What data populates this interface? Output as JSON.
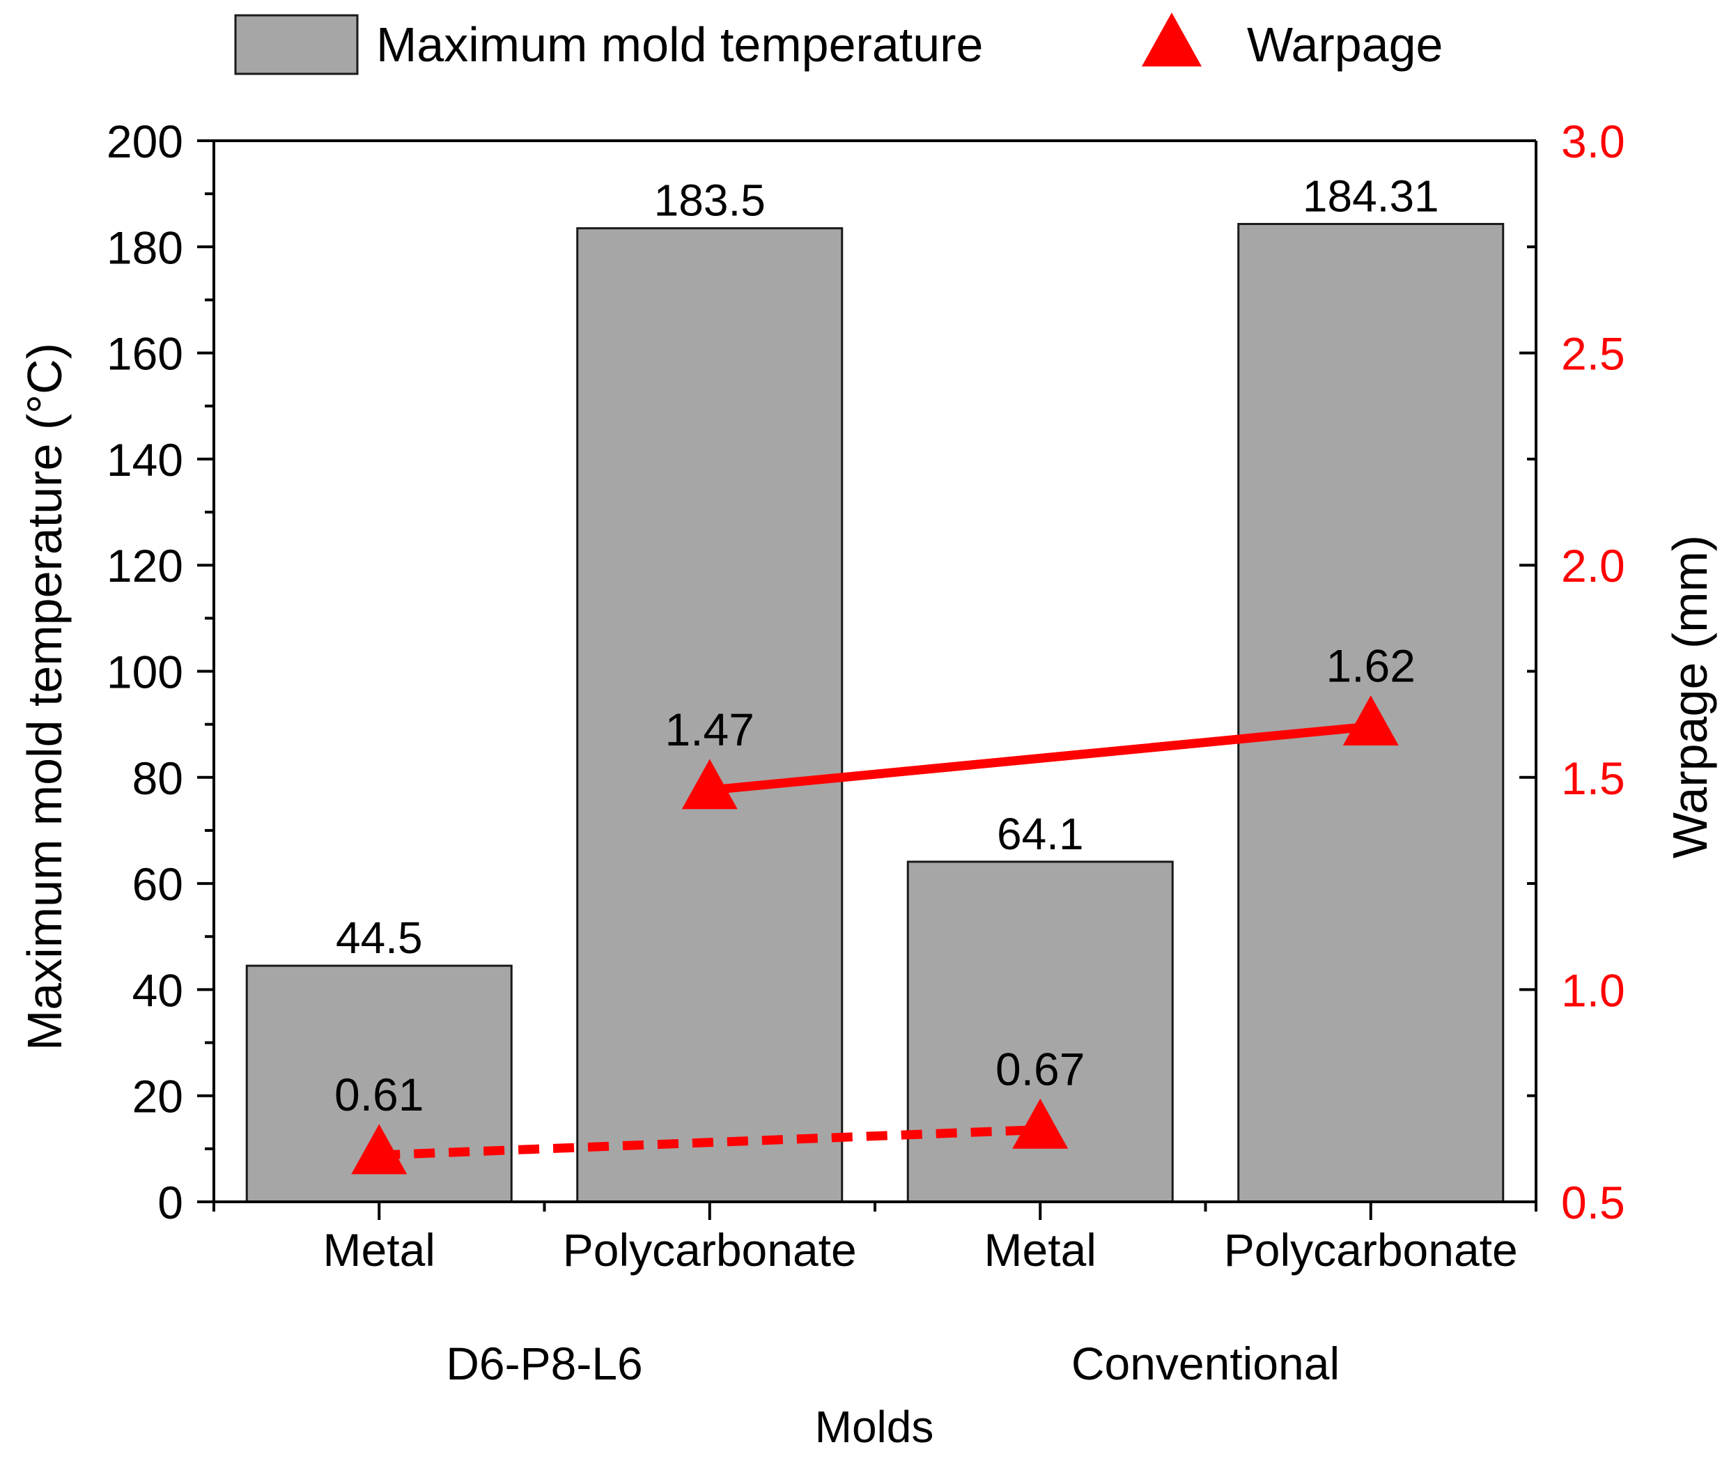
{
  "chart_data": {
    "type": "bar",
    "title": "",
    "categories": [
      "Metal",
      "Polycarbonate",
      "Metal",
      "Polycarbonate"
    ],
    "groups": [
      {
        "label": "D6-P8-L6",
        "members": [
          0,
          1
        ]
      },
      {
        "label": "Conventional",
        "members": [
          2,
          3
        ]
      }
    ],
    "xlabel": "Molds",
    "ylabel": "Maximum mold temperature (°C)",
    "y2label": "Warpage (mm)",
    "ylim": [
      0,
      200
    ],
    "yticks": [
      0,
      20,
      40,
      60,
      80,
      100,
      120,
      140,
      160,
      180,
      200
    ],
    "ytick_labels": [
      "0",
      "20",
      "40",
      "60",
      "80",
      "100",
      "120",
      "140",
      "160",
      "180",
      "200"
    ],
    "y2lim": [
      0.5,
      3.0
    ],
    "y2ticks": [
      0.5,
      1.0,
      1.5,
      2.0,
      2.5,
      3.0
    ],
    "y2tick_labels": [
      "0.5",
      "1.0",
      "1.5",
      "2.0",
      "2.5",
      "3.0"
    ],
    "series": [
      {
        "name": "Maximum mold temperature",
        "type": "bar",
        "axis": "left",
        "values": [
          44.5,
          183.5,
          64.1,
          184.31
        ],
        "labels": [
          "44.5",
          "183.5",
          "64.1",
          "184.31"
        ]
      },
      {
        "name": "Warpage",
        "type": "line",
        "marker": "triangle",
        "axis": "right",
        "values": [
          0.61,
          1.47,
          0.67,
          1.62
        ],
        "labels": [
          "0.61",
          "1.47",
          "0.67",
          "1.62"
        ],
        "connections": [
          {
            "from": 0,
            "to": 2,
            "style": "dashed"
          },
          {
            "from": 1,
            "to": 3,
            "style": "solid"
          }
        ]
      }
    ],
    "legend": {
      "position": "top",
      "entries": [
        {
          "label": "Maximum mold temperature",
          "symbol": "bar"
        },
        {
          "label": "Warpage",
          "symbol": "triangle"
        }
      ]
    },
    "colors": {
      "bar_fill": "#a6a6a6",
      "bar_edge": "#1a1a1a",
      "axis": "#000000",
      "warpage": "#ff0000",
      "text": "#000000"
    }
  }
}
